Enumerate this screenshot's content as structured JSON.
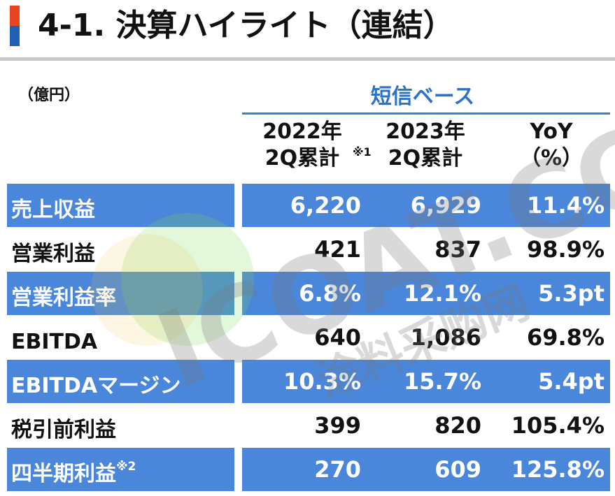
{
  "title": "4-1. 決算ハイライト（連結）",
  "unit_label": "（億円）",
  "basis_label": "短信ベース",
  "columns": {
    "c1_line1": "2022年",
    "c1_line2": "2Q累計",
    "c1_note": "※1",
    "c2_line1": "2023年",
    "c2_line2": "2Q累計",
    "c3_line1": "YoY",
    "c3_line2": "（%）"
  },
  "rows": [
    {
      "label": "売上収益",
      "note": "",
      "v1": "6,220",
      "v2": "6,929",
      "v3": "11.4%"
    },
    {
      "label": "営業利益",
      "note": "",
      "v1": "421",
      "v2": "837",
      "v3": "98.9%"
    },
    {
      "label": "営業利益率",
      "note": "",
      "v1": "6.8%",
      "v2": "12.1%",
      "v3": "5.3pt"
    },
    {
      "label": "EBITDA",
      "note": "",
      "v1": "640",
      "v2": "1,086",
      "v3": "69.8%"
    },
    {
      "label": "EBITDAマージン",
      "note": "",
      "v1": "10.3%",
      "v2": "15.7%",
      "v3": "5.4pt"
    },
    {
      "label": "税引前利益",
      "note": "",
      "v1": "399",
      "v2": "820",
      "v3": "105.4%"
    },
    {
      "label": "四半期利益",
      "note": "※2",
      "v1": "270",
      "v2": "609",
      "v3": "125.8%"
    }
  ],
  "watermark": {
    "text_main": "ICOAT.CC",
    "text_sub": "涂料采购网"
  },
  "colors": {
    "accent_red": "#e8441f",
    "accent_blue": "#1f5fb8",
    "row_blue": "#4a86d9",
    "basis_text": "#2c72c7"
  }
}
